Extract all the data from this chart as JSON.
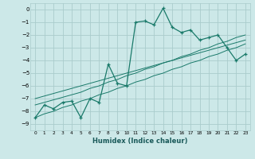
{
  "x": [
    0,
    1,
    2,
    3,
    4,
    5,
    6,
    7,
    8,
    9,
    10,
    11,
    12,
    13,
    14,
    15,
    16,
    17,
    18,
    19,
    20,
    21,
    22,
    23
  ],
  "y_main": [
    -8.5,
    -7.5,
    -7.8,
    -7.3,
    -7.2,
    -8.5,
    -7.0,
    -7.3,
    -4.3,
    -5.8,
    -6.0,
    -1.0,
    -0.9,
    -1.2,
    0.1,
    -1.4,
    -1.8,
    -1.6,
    -2.4,
    -2.2,
    -2.0,
    -3.0,
    -4.0,
    -3.5
  ],
  "y_reg1": [
    -7.5,
    -7.3,
    -7.1,
    -6.9,
    -6.7,
    -6.5,
    -6.2,
    -6.0,
    -5.7,
    -5.5,
    -5.2,
    -5.0,
    -4.7,
    -4.5,
    -4.2,
    -4.0,
    -3.7,
    -3.5,
    -3.2,
    -3.0,
    -2.7,
    -2.5,
    -2.2,
    -2.0
  ],
  "y_reg2": [
    -7.0,
    -6.8,
    -6.6,
    -6.4,
    -6.2,
    -6.0,
    -5.8,
    -5.6,
    -5.4,
    -5.2,
    -5.0,
    -4.8,
    -4.6,
    -4.4,
    -4.2,
    -4.0,
    -3.8,
    -3.6,
    -3.4,
    -3.2,
    -3.0,
    -2.8,
    -2.6,
    -2.4
  ],
  "y_reg3": [
    -8.5,
    -8.2,
    -8.0,
    -7.7,
    -7.5,
    -7.2,
    -7.0,
    -6.7,
    -6.5,
    -6.2,
    -6.0,
    -5.7,
    -5.5,
    -5.2,
    -5.0,
    -4.7,
    -4.5,
    -4.2,
    -4.0,
    -3.7,
    -3.5,
    -3.2,
    -3.0,
    -2.7
  ],
  "bg_color": "#cce8e8",
  "grid_color": "#aacccc",
  "line_color": "#1a7a6a",
  "xlabel": "Humidex (Indice chaleur)",
  "ylim": [
    -9.5,
    0.5
  ],
  "xlim": [
    -0.5,
    23.5
  ],
  "yticks": [
    0,
    -1,
    -2,
    -3,
    -4,
    -5,
    -6,
    -7,
    -8,
    -9
  ],
  "xtick_labels": [
    "0",
    "1",
    "2",
    "3",
    "4",
    "5",
    "6",
    "7",
    "8",
    "9",
    "10",
    "11",
    "12",
    "13",
    "14",
    "15",
    "16",
    "17",
    "18",
    "19",
    "20",
    "21",
    "22",
    "23"
  ]
}
